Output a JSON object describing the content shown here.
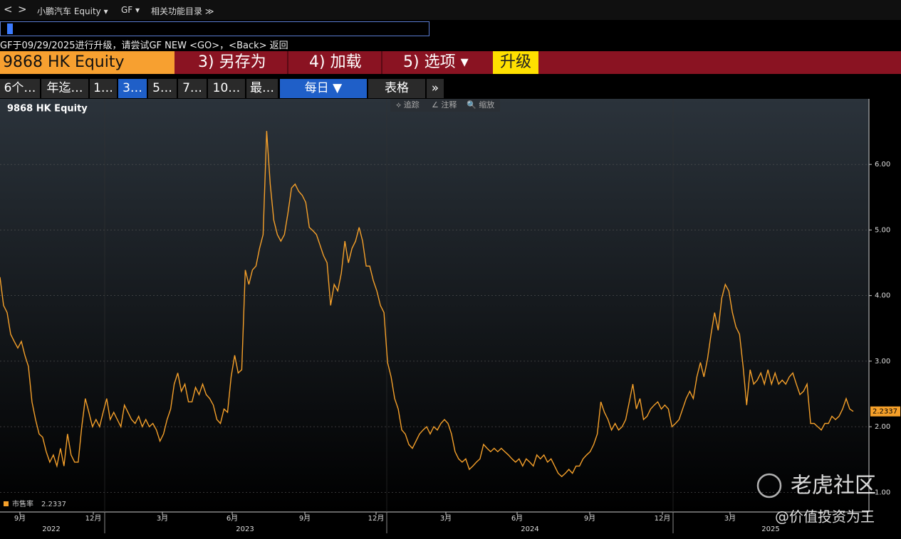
{
  "nav": {
    "back": "<",
    "forward": ">",
    "security": "小鹏汽车 Equity ▾",
    "function": "GF ▾",
    "related": "相关功能目录 ≫"
  },
  "message": "GF于09/29/2025进行升级，请尝试GF NEW <GO>，<Back> 返回",
  "toolbar": {
    "ticker": "9868 HK Equity",
    "save": "3) 另存为",
    "load": "4) 加载",
    "options": "5) 选项 ▾",
    "upgrade": "升级"
  },
  "tabs": [
    "6个…",
    "年迄…",
    "1…",
    "3…",
    "5…",
    "7…",
    "10…",
    "最…"
  ],
  "period": "每日 ▼",
  "table": "表格",
  "more": "»",
  "chart_tools": [
    "⟡ 追踪",
    "∠ 注释",
    "🔍 缩放"
  ],
  "watermark": {
    "brand": "老虎社区",
    "author": "@价值投资为王"
  },
  "chart_data": {
    "type": "line",
    "title": "9868 HK Equity",
    "ylim": [
      0.7,
      7.0
    ],
    "yticks": [
      {
        "value": 1,
        "label": "1.00"
      },
      {
        "value": 2,
        "label": "2.00"
      },
      {
        "value": 3,
        "label": "3.00"
      },
      {
        "value": 4,
        "label": "4.00"
      },
      {
        "value": 5,
        "label": "5.00"
      },
      {
        "value": 6,
        "label": "6.00"
      }
    ],
    "grid": true,
    "month_labels": [
      "9月",
      "12月",
      "3月",
      "6月",
      "9月",
      "12月",
      "3月",
      "6月",
      "9月",
      "12月",
      "3月"
    ],
    "year_labels": [
      "2022",
      "2023",
      "2024",
      "2025"
    ],
    "series": [
      {
        "name": "市售率",
        "color": "#f5a02a",
        "values": [
          4.28,
          3.85,
          3.74,
          3.41,
          3.3,
          3.2,
          3.3,
          3.09,
          2.92,
          2.38,
          2.11,
          1.89,
          1.84,
          1.62,
          1.46,
          1.57,
          1.4,
          1.67,
          1.4,
          1.89,
          1.57,
          1.46,
          1.46,
          2.0,
          2.43,
          2.22,
          2.0,
          2.11,
          2.0,
          2.22,
          2.43,
          2.11,
          2.22,
          2.11,
          2.0,
          2.33,
          2.22,
          2.11,
          2.05,
          2.16,
          2.0,
          2.11,
          2.0,
          2.05,
          1.95,
          1.78,
          1.89,
          2.11,
          2.27,
          2.65,
          2.82,
          2.54,
          2.65,
          2.38,
          2.38,
          2.6,
          2.49,
          2.65,
          2.49,
          2.43,
          2.33,
          2.11,
          2.05,
          2.27,
          2.22,
          2.76,
          3.09,
          2.82,
          2.87,
          4.39,
          4.17,
          4.39,
          4.45,
          4.72,
          4.93,
          6.51,
          5.7,
          5.15,
          4.93,
          4.83,
          4.93,
          5.26,
          5.64,
          5.7,
          5.59,
          5.53,
          5.42,
          5.04,
          4.99,
          4.93,
          4.77,
          4.61,
          4.5,
          3.85,
          4.17,
          4.07,
          4.34,
          4.83,
          4.5,
          4.72,
          4.83,
          5.04,
          4.83,
          4.45,
          4.45,
          4.23,
          4.07,
          3.85,
          3.74,
          2.98,
          2.76,
          2.43,
          2.27,
          1.95,
          1.89,
          1.73,
          1.67,
          1.78,
          1.89,
          1.95,
          2.0,
          1.89,
          2.0,
          1.95,
          2.05,
          2.11,
          2.05,
          1.89,
          1.62,
          1.51,
          1.46,
          1.51,
          1.35,
          1.4,
          1.46,
          1.51,
          1.73,
          1.67,
          1.62,
          1.67,
          1.62,
          1.67,
          1.62,
          1.57,
          1.51,
          1.46,
          1.51,
          1.4,
          1.51,
          1.46,
          1.4,
          1.57,
          1.51,
          1.57,
          1.46,
          1.51,
          1.4,
          1.29,
          1.24,
          1.29,
          1.35,
          1.29,
          1.4,
          1.4,
          1.51,
          1.57,
          1.62,
          1.73,
          1.89,
          2.38,
          2.22,
          2.11,
          1.95,
          2.05,
          1.95,
          2.0,
          2.11,
          2.38,
          2.65,
          2.27,
          2.43,
          2.11,
          2.16,
          2.27,
          2.33,
          2.38,
          2.27,
          2.33,
          2.27,
          2.0,
          2.05,
          2.11,
          2.27,
          2.43,
          2.54,
          2.43,
          2.76,
          2.98,
          2.76,
          3.03,
          3.41,
          3.74,
          3.47,
          3.96,
          4.17,
          4.07,
          3.74,
          3.52,
          3.41,
          2.92,
          2.33,
          2.87,
          2.65,
          2.71,
          2.82,
          2.65,
          2.87,
          2.65,
          2.82,
          2.65,
          2.71,
          2.65,
          2.76,
          2.82,
          2.65,
          2.49,
          2.54,
          2.65,
          2.05,
          2.05,
          2.0,
          1.95,
          2.05,
          2.05,
          2.16,
          2.11,
          2.16,
          2.27,
          2.43,
          2.27,
          2.2337
        ]
      }
    ]
  }
}
